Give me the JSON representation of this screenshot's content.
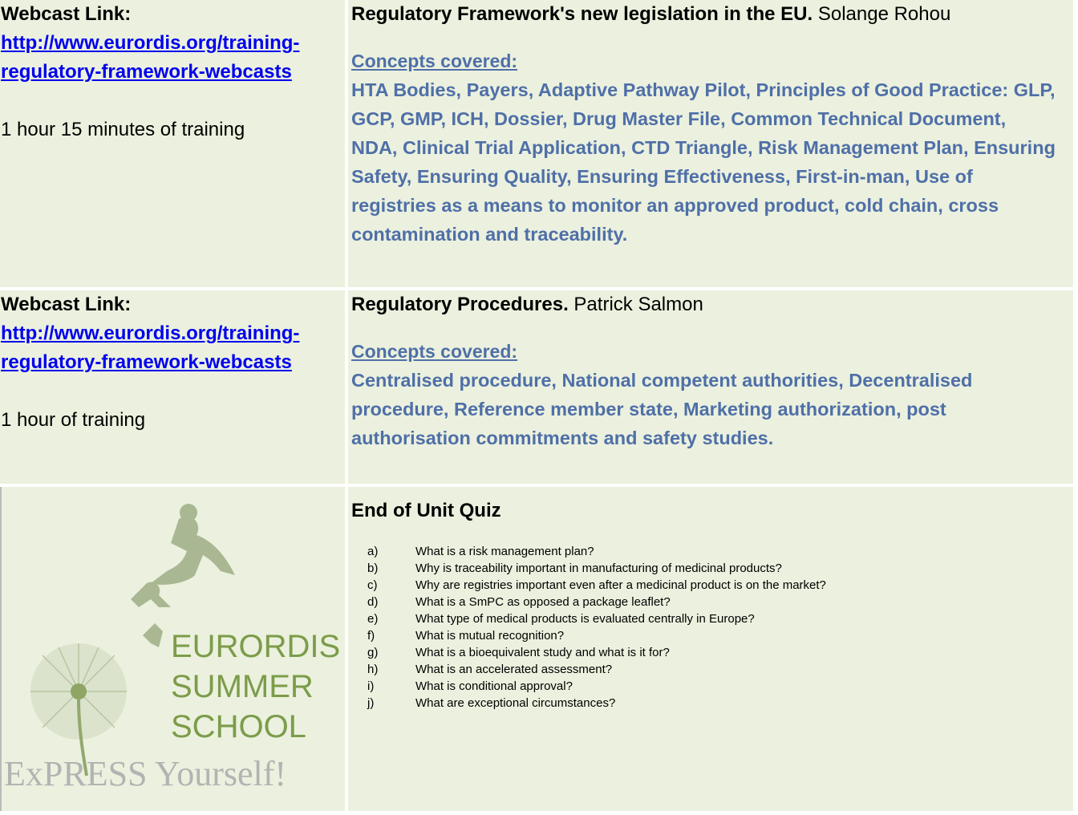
{
  "rows": [
    {
      "left": {
        "label": "Webcast Link:",
        "link_lines": [
          "http://www.eurordis.org/training-",
          "regulatory-framework-webcasts"
        ],
        "duration": "1 hour 15 minutes of training"
      },
      "right": {
        "title": "Regulatory Framework's new legislation in the EU.",
        "speaker": "Solange Rohou",
        "concepts_heading": "Concepts covered:",
        "concepts": "HTA Bodies, Payers, Adaptive Pathway Pilot, Principles of Good Practice: GLP, GCP, GMP, ICH,  Dossier, Drug Master File, Common Technical Document, NDA, Clinical Trial Application, CTD Triangle, Risk Management Plan, Ensuring Safety, Ensuring Quality, Ensuring Effectiveness, First-in-man, Use of registries as a means to monitor an approved product, cold chain, cross contamination and traceability."
      }
    },
    {
      "left": {
        "label": "Webcast Link:",
        "link_lines": [
          "http://www.eurordis.org/training-",
          "regulatory-framework-webcasts"
        ],
        "duration": "1 hour of training"
      },
      "right": {
        "title": "Regulatory Procedures.",
        "speaker": "Patrick Salmon",
        "concepts_heading": "Concepts covered:",
        "concepts": "Centralised procedure, National competent authorities, Decentralised procedure, Reference member state, Marketing authorization, post authorisation commitments and safety studies."
      }
    }
  ],
  "logo": {
    "lines": [
      "EURORDIS",
      "SUMMER",
      "SCHOOL"
    ],
    "tagline": "ExPRESS Yourself!"
  },
  "quiz": {
    "title": "End of Unit Quiz",
    "items": [
      {
        "letter": "a)",
        "text": "What is a risk management plan?"
      },
      {
        "letter": "b)",
        "text": "Why is traceability important in manufacturing of medicinal products?"
      },
      {
        "letter": "c)",
        "text": "Why are registries important even after a medicinal product is on the market?"
      },
      {
        "letter": "d)",
        "text": "What is a SmPC as opposed a package leaflet?"
      },
      {
        "letter": "e)",
        "text": "What type of medical products is evaluated centrally in Europe?"
      },
      {
        "letter": "f)",
        "text": "What is mutual recognition?"
      },
      {
        "letter": "g)",
        "text": "What is a bioequivalent study and what is it for?"
      },
      {
        "letter": "h)",
        "text": "What is an accelerated assessment?"
      },
      {
        "letter": "i)",
        "text": "What is conditional approval?"
      },
      {
        "letter": "j)",
        "text": "What are exceptional circumstances?"
      }
    ]
  }
}
